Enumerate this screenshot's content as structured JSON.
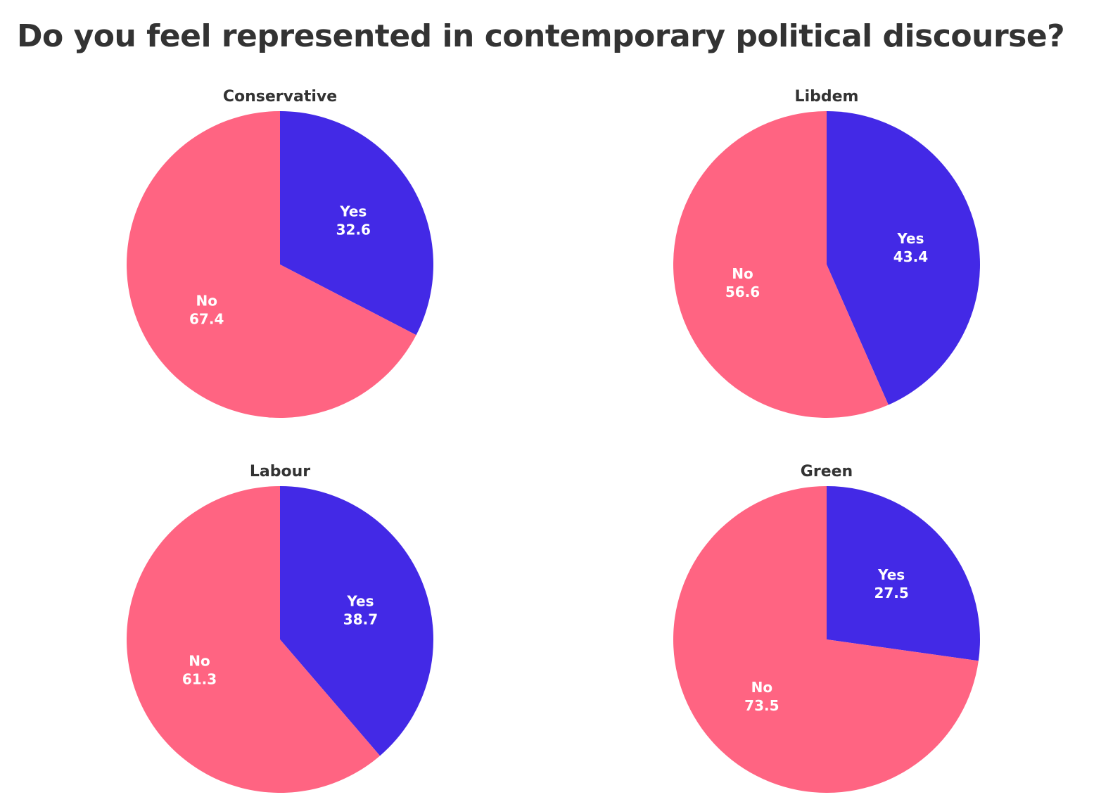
{
  "title": "Do you feel represented in contemporary political discourse?",
  "colors": {
    "yes": "#4329E6",
    "no": "#FF6482",
    "title_text": "#333333",
    "label_text": "#ffffff"
  },
  "chart_data": [
    {
      "type": "pie",
      "title": "Conservative",
      "slices": [
        {
          "label": "Yes",
          "value": 32.6
        },
        {
          "label": "No",
          "value": 67.4
        }
      ]
    },
    {
      "type": "pie",
      "title": "Libdem",
      "slices": [
        {
          "label": "Yes",
          "value": 43.4
        },
        {
          "label": "No",
          "value": 56.6
        }
      ]
    },
    {
      "type": "pie",
      "title": "Labour",
      "slices": [
        {
          "label": "Yes",
          "value": 38.7
        },
        {
          "label": "No",
          "value": 61.3
        }
      ]
    },
    {
      "type": "pie",
      "title": "Green",
      "slices": [
        {
          "label": "Yes",
          "value": 27.5
        },
        {
          "label": "No",
          "value": 73.5
        }
      ]
    }
  ]
}
